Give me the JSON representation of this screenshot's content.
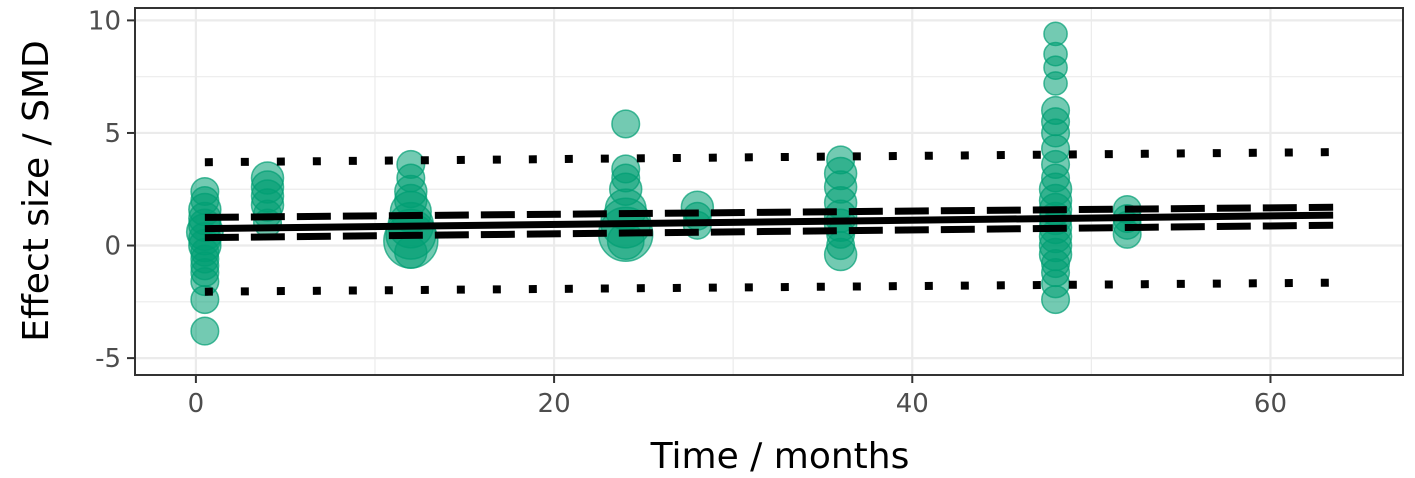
{
  "chart_data": {
    "type": "scatter",
    "xlabel": "Time / months",
    "ylabel": "Effect size / SMD",
    "xlim": [
      -3.4,
      67.4
    ],
    "ylim": [
      -5.75,
      10.55
    ],
    "xticks": [
      0,
      20,
      40,
      60
    ],
    "xtick_labels": [
      "0",
      "20",
      "40",
      "60"
    ],
    "yticks": [
      -5,
      0,
      5,
      10
    ],
    "ytick_labels": [
      "-5",
      "0",
      "5",
      "10"
    ],
    "grid": true,
    "legend": "none",
    "colors": {
      "points": "#009E73",
      "lines": "#000000",
      "grid_major": "#ebebeb",
      "panel_border": "#333333"
    },
    "points": [
      {
        "x": 0.5,
        "y": 2.4,
        "size": 0.4
      },
      {
        "x": 0.5,
        "y": 2.0,
        "size": 0.4
      },
      {
        "x": 0.5,
        "y": 1.6,
        "size": 0.5
      },
      {
        "x": 0.5,
        "y": 1.2,
        "size": 0.5
      },
      {
        "x": 0.5,
        "y": 0.9,
        "size": 0.5
      },
      {
        "x": 0.5,
        "y": 0.6,
        "size": 0.6
      },
      {
        "x": 0.5,
        "y": 0.3,
        "size": 0.5
      },
      {
        "x": 0.5,
        "y": 0.0,
        "size": 0.5
      },
      {
        "x": 0.5,
        "y": -0.3,
        "size": 0.4
      },
      {
        "x": 0.5,
        "y": -0.6,
        "size": 0.4
      },
      {
        "x": 0.5,
        "y": -0.9,
        "size": 0.4
      },
      {
        "x": 0.5,
        "y": -1.2,
        "size": 0.4
      },
      {
        "x": 0.5,
        "y": -1.6,
        "size": 0.4
      },
      {
        "x": 0.5,
        "y": -2.4,
        "size": 0.4
      },
      {
        "x": 0.5,
        "y": -3.8,
        "size": 0.4
      },
      {
        "x": 4,
        "y": 3.0,
        "size": 0.5
      },
      {
        "x": 4,
        "y": 2.6,
        "size": 0.5
      },
      {
        "x": 4,
        "y": 2.2,
        "size": 0.5
      },
      {
        "x": 4,
        "y": 1.8,
        "size": 0.5
      },
      {
        "x": 4,
        "y": 1.4,
        "size": 0.4
      },
      {
        "x": 4,
        "y": 1.0,
        "size": 0.4
      },
      {
        "x": 12,
        "y": 3.6,
        "size": 0.4
      },
      {
        "x": 12,
        "y": 3.0,
        "size": 0.4
      },
      {
        "x": 12,
        "y": 2.4,
        "size": 0.5
      },
      {
        "x": 12,
        "y": 2.0,
        "size": 0.5
      },
      {
        "x": 12,
        "y": 1.5,
        "size": 0.7
      },
      {
        "x": 12,
        "y": 0.9,
        "size": 0.8
      },
      {
        "x": 12,
        "y": 0.5,
        "size": 0.9
      },
      {
        "x": 12,
        "y": 0.2,
        "size": 1.0
      },
      {
        "x": 12,
        "y": -0.3,
        "size": 0.5
      },
      {
        "x": 24,
        "y": 5.4,
        "size": 0.4
      },
      {
        "x": 24,
        "y": 3.4,
        "size": 0.4
      },
      {
        "x": 24,
        "y": 3.0,
        "size": 0.4
      },
      {
        "x": 24,
        "y": 2.5,
        "size": 0.5
      },
      {
        "x": 24,
        "y": 1.6,
        "size": 0.7
      },
      {
        "x": 24,
        "y": 1.0,
        "size": 0.9
      },
      {
        "x": 24,
        "y": 0.5,
        "size": 1.0
      },
      {
        "x": 24,
        "y": 0.2,
        "size": 0.6
      },
      {
        "x": 28,
        "y": 1.7,
        "size": 0.5
      },
      {
        "x": 28,
        "y": 1.3,
        "size": 0.4
      },
      {
        "x": 28,
        "y": 0.9,
        "size": 0.4
      },
      {
        "x": 36,
        "y": 3.8,
        "size": 0.4
      },
      {
        "x": 36,
        "y": 3.2,
        "size": 0.5
      },
      {
        "x": 36,
        "y": 2.6,
        "size": 0.5
      },
      {
        "x": 36,
        "y": 1.9,
        "size": 0.5
      },
      {
        "x": 36,
        "y": 1.3,
        "size": 0.5
      },
      {
        "x": 36,
        "y": 0.9,
        "size": 0.5
      },
      {
        "x": 36,
        "y": 0.5,
        "size": 0.4
      },
      {
        "x": 36,
        "y": 0.0,
        "size": 0.4
      },
      {
        "x": 36,
        "y": -0.4,
        "size": 0.5
      },
      {
        "x": 48,
        "y": 9.4,
        "size": 0.3
      },
      {
        "x": 48,
        "y": 8.5,
        "size": 0.3
      },
      {
        "x": 48,
        "y": 7.9,
        "size": 0.3
      },
      {
        "x": 48,
        "y": 7.2,
        "size": 0.3
      },
      {
        "x": 48,
        "y": 6.0,
        "size": 0.4
      },
      {
        "x": 48,
        "y": 5.5,
        "size": 0.4
      },
      {
        "x": 48,
        "y": 5.0,
        "size": 0.4
      },
      {
        "x": 48,
        "y": 4.3,
        "size": 0.4
      },
      {
        "x": 48,
        "y": 3.6,
        "size": 0.4
      },
      {
        "x": 48,
        "y": 3.0,
        "size": 0.4
      },
      {
        "x": 48,
        "y": 2.5,
        "size": 0.5
      },
      {
        "x": 48,
        "y": 2.0,
        "size": 0.5
      },
      {
        "x": 48,
        "y": 1.6,
        "size": 0.5
      },
      {
        "x": 48,
        "y": 1.2,
        "size": 0.5
      },
      {
        "x": 48,
        "y": 0.8,
        "size": 0.5
      },
      {
        "x": 48,
        "y": 0.4,
        "size": 0.5
      },
      {
        "x": 48,
        "y": 0.0,
        "size": 0.5
      },
      {
        "x": 48,
        "y": -0.4,
        "size": 0.5
      },
      {
        "x": 48,
        "y": -0.8,
        "size": 0.4
      },
      {
        "x": 48,
        "y": -1.2,
        "size": 0.4
      },
      {
        "x": 48,
        "y": -1.7,
        "size": 0.4
      },
      {
        "x": 48,
        "y": -2.4,
        "size": 0.4
      },
      {
        "x": 52,
        "y": 1.6,
        "size": 0.4
      },
      {
        "x": 52,
        "y": 1.2,
        "size": 0.4
      },
      {
        "x": 52,
        "y": 0.9,
        "size": 0.4
      },
      {
        "x": 52,
        "y": 0.5,
        "size": 0.4
      }
    ],
    "lines": [
      {
        "style": "solid",
        "x": [
          0.5,
          63.5
        ],
        "y": [
          0.75,
          1.35
        ]
      },
      {
        "style": "dashed",
        "x": [
          0.5,
          63.5
        ],
        "y": [
          1.25,
          1.7
        ]
      },
      {
        "style": "dashed",
        "x": [
          0.5,
          63.5
        ],
        "y": [
          0.35,
          0.9
        ]
      },
      {
        "style": "dotted",
        "x": [
          0.5,
          63.5
        ],
        "y": [
          3.7,
          4.15
        ]
      },
      {
        "style": "dotted",
        "x": [
          0.5,
          63.5
        ],
        "y": [
          -2.05,
          -1.65
        ]
      }
    ]
  }
}
